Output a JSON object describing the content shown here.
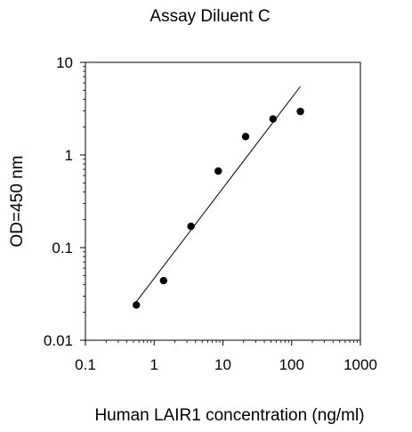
{
  "chart_data": {
    "type": "scatter",
    "title": "Assay Diluent C",
    "xlabel": "Human LAIR1 concentration (ng/ml)",
    "ylabel": "OD=450 nm",
    "xscale": "log",
    "yscale": "log",
    "xlim": [
      0.1,
      1000
    ],
    "ylim": [
      0.01,
      10
    ],
    "xticks": [
      "0.1",
      "1",
      "10",
      "100",
      "1000"
    ],
    "yticks": [
      "0.01",
      "0.1",
      "1",
      "10"
    ],
    "grid": false,
    "legend": "none",
    "series": [
      {
        "points": [
          {
            "x": 0.55,
            "y": 0.024
          },
          {
            "x": 1.37,
            "y": 0.044
          },
          {
            "x": 3.43,
            "y": 0.17
          },
          {
            "x": 8.57,
            "y": 0.67
          },
          {
            "x": 21.4,
            "y": 1.58
          },
          {
            "x": 53.6,
            "y": 2.45
          },
          {
            "x": 134,
            "y": 2.95
          }
        ],
        "marker_color": "#000000"
      }
    ],
    "fit_line": {
      "points": [
        {
          "x": 0.55,
          "y": 0.026
        },
        {
          "x": 134,
          "y": 5.5
        }
      ],
      "color": "#000000"
    }
  }
}
